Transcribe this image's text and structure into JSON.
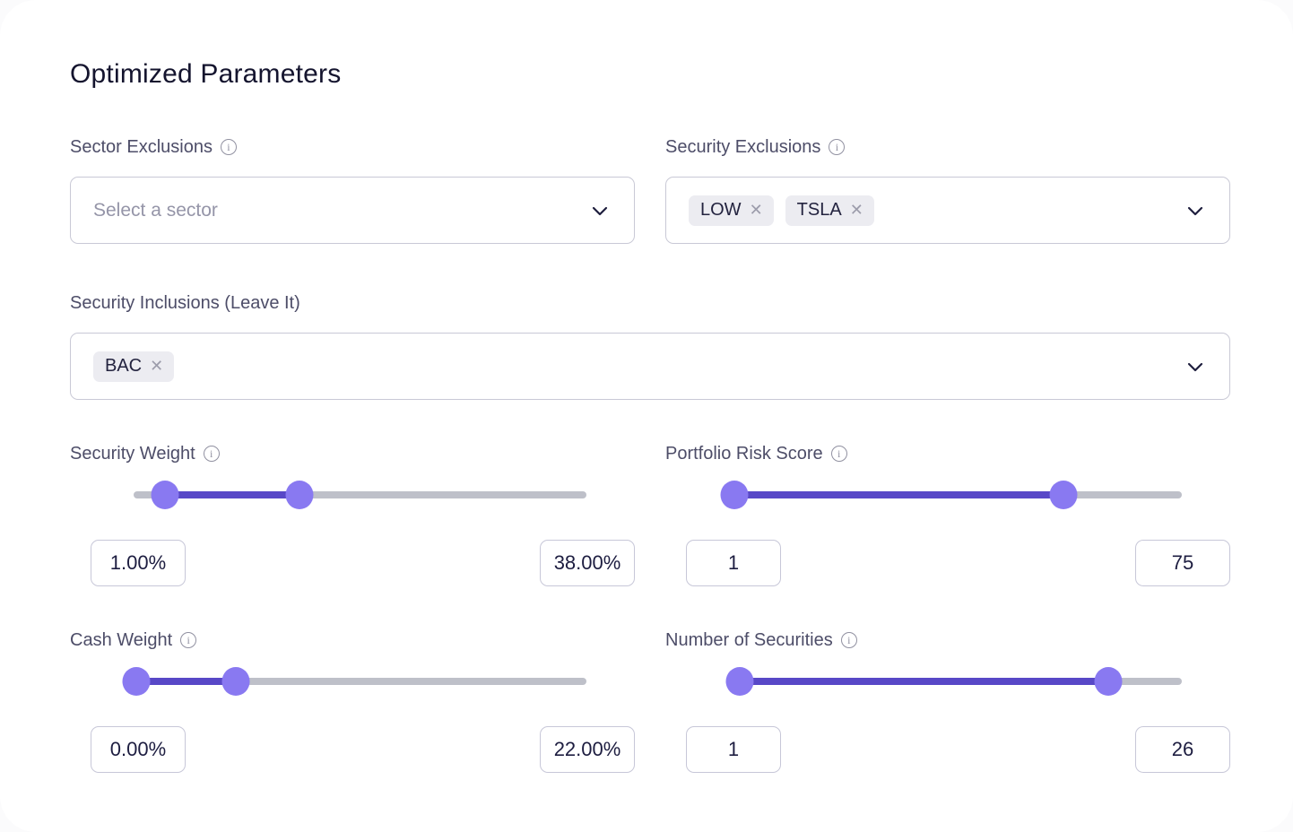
{
  "title": "Optimized Parameters",
  "selects": {
    "sector_exclusions": {
      "label": "Sector Exclusions",
      "placeholder": "Select a sector"
    },
    "security_exclusions": {
      "label": "Security Exclusions",
      "tags": [
        "LOW",
        "TSLA"
      ]
    },
    "security_inclusions": {
      "label": "Security Inclusions (Leave It)",
      "tags": [
        "BAC"
      ]
    }
  },
  "icons": {
    "info": "i",
    "remove_tag": "✕"
  },
  "sliders": {
    "security_weight": {
      "label": "Security Weight",
      "low_value": "1.00%",
      "high_value": "38.00%",
      "low_pct": 6.9,
      "high_pct": 36.7
    },
    "portfolio_risk_score": {
      "label": "Portfolio Risk Score",
      "low_value": "1",
      "high_value": "75",
      "low_pct": 1.2,
      "high_pct": 73.8
    },
    "cash_weight": {
      "label": "Cash Weight",
      "low_value": "0.00%",
      "high_value": "22.00%",
      "low_pct": 0.5,
      "high_pct": 22.5
    },
    "number_of_securities": {
      "label": "Number of Securities",
      "low_value": "1",
      "high_value": "26",
      "low_pct": 2.4,
      "high_pct": 83.8
    }
  },
  "colors": {
    "accent_fill": "#5848c7",
    "accent_handle": "#8979f1",
    "track": "#bec0c9",
    "tag_background": "#ececf1",
    "title_text": "#14142e",
    "label_text": "#4d4d68"
  }
}
